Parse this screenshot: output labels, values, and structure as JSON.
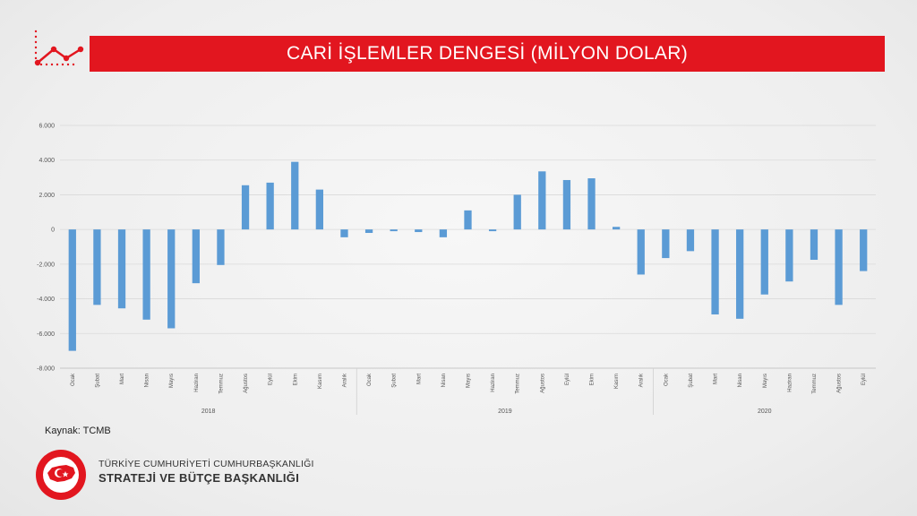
{
  "header": {
    "title": "CARİ İŞLEMLER DENGESİ (MİLYON DOLAR)"
  },
  "footer": {
    "source": "Kaynak: TCMB",
    "org_line1": "TÜRKİYE CUMHURİYETİ CUMHURBAŞKANLIĞI",
    "org_line2": "STRATEJİ VE BÜTÇE BAŞKANLIĞI",
    "logo_text": "T.C. CUMHURBAŞKANLIĞI STRATEJİ VE BÜTÇE BAŞKANLIĞI"
  },
  "colors": {
    "accent": "#e2161f",
    "bar": "#5b9bd5",
    "grid": "#d9d9d9"
  },
  "chart_data": {
    "type": "bar",
    "title": "",
    "xlabel": "",
    "ylabel": "",
    "ylim": [
      -8000,
      6000
    ],
    "yticks": [
      6000,
      4000,
      2000,
      0,
      -2000,
      -4000,
      -6000,
      -8000
    ],
    "ytick_labels": [
      "6.000",
      "4.000",
      "2.000",
      "0",
      "-2.000",
      "-4.000",
      "-6.000",
      "-8.000"
    ],
    "grid": true,
    "legend": "none",
    "groups": [
      {
        "year": "2018",
        "months": [
          "Ocak",
          "Şubat",
          "Mart",
          "Nisan",
          "Mayıs",
          "Haziran",
          "Temmuz",
          "Ağustos",
          "Eylül",
          "Ekim",
          "Kasım",
          "Aralık"
        ],
        "values": [
          -7000,
          -4350,
          -4550,
          -5200,
          -5700,
          -3100,
          -2050,
          2550,
          2700,
          3900,
          2300,
          -450
        ]
      },
      {
        "year": "2019",
        "months": [
          "Ocak",
          "Şubat",
          "Mart",
          "Nisan",
          "Mayıs",
          "Haziran",
          "Temmuz",
          "Ağustos",
          "Eylül",
          "Ekim",
          "Kasım",
          "Aralık"
        ],
        "values": [
          -200,
          -100,
          -150,
          -450,
          1100,
          -100,
          2000,
          3350,
          2850,
          2950,
          150,
          -2600
        ]
      },
      {
        "year": "2020",
        "months": [
          "Ocak",
          "Şubat",
          "Mart",
          "Nisan",
          "Mayıs",
          "Haziran",
          "Temmuz",
          "Ağustos",
          "Eylül"
        ],
        "values": [
          -1650,
          -1250,
          -4900,
          -5150,
          -3750,
          -3000,
          -1750,
          -4350,
          -2400
        ]
      }
    ]
  }
}
